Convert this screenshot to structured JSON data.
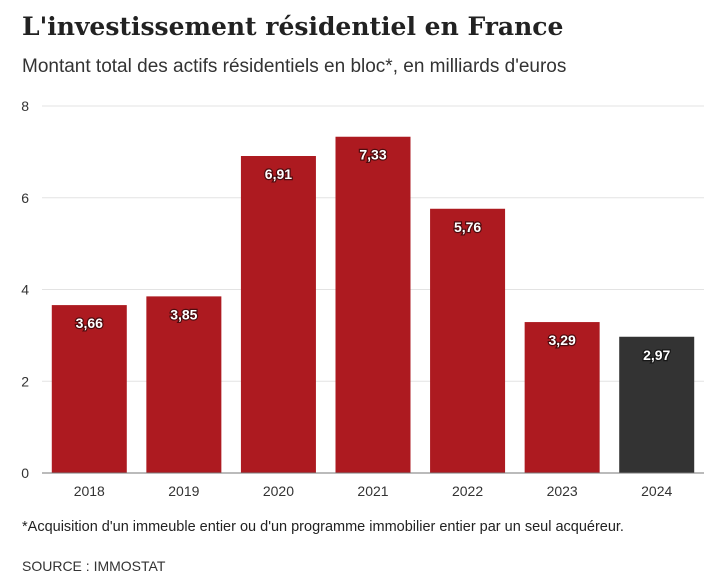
{
  "title": "L'investissement résidentiel en France",
  "subtitle": "Montant total des actifs résidentiels en bloc*, en milliards d'euros",
  "footnote": "*Acquisition d'un immeuble entier ou d'un programme immobilier entier par un seul acquéreur.",
  "source": "SOURCE : IMMOSTAT",
  "chart_data": {
    "type": "bar",
    "title": "L'investissement résidentiel en France",
    "subtitle": "Montant total des actifs résidentiels en bloc*, en milliards d'euros",
    "xlabel": "",
    "ylabel": "",
    "categories": [
      "2018",
      "2019",
      "2020",
      "2021",
      "2022",
      "2023",
      "2024"
    ],
    "values": [
      3.66,
      3.85,
      6.91,
      7.33,
      5.76,
      3.29,
      2.97
    ],
    "value_labels": [
      "3,66",
      "3,85",
      "6,91",
      "7,33",
      "5,76",
      "3,29",
      "2,97"
    ],
    "ylim": [
      0,
      8
    ],
    "yticks": [
      0,
      2,
      4,
      6,
      8
    ],
    "grid": true,
    "legend": "none",
    "colors": {
      "bar": "#ad1a20",
      "highlight": "#333333",
      "gridline": "#e3e3e3",
      "axis": "#777777",
      "label_text": "#ffffff",
      "tick_text": "#333333"
    },
    "highlight_index": 6
  }
}
